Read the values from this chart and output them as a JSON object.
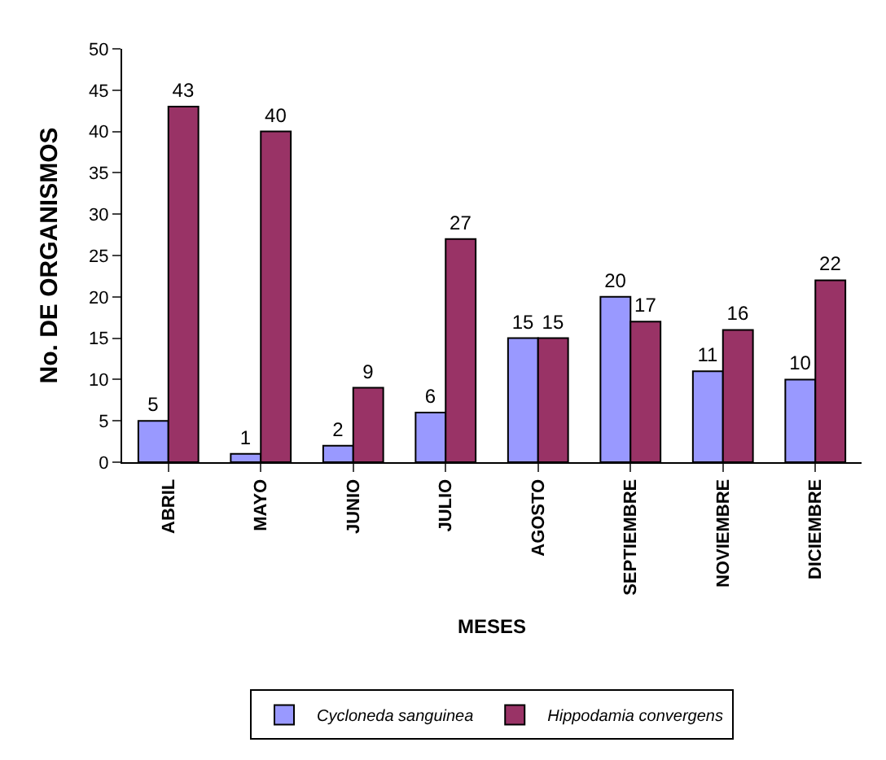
{
  "chart_data": {
    "type": "bar",
    "xlabel": "MESES",
    "ylabel": "No. DE ORGANISMOS",
    "categories": [
      "ABRIL",
      "MAYO",
      "JUNIO",
      "JULIO",
      "AGOSTO",
      "SEPTIEMBRE",
      "NOVIEMBRE",
      "DICIEMBRE"
    ],
    "series": [
      {
        "name": "Cycloneda sanguinea",
        "color": "#9999ff",
        "values": [
          5,
          1,
          2,
          6,
          15,
          20,
          11,
          10
        ]
      },
      {
        "name": "Hippodamia convergens",
        "color": "#993366",
        "values": [
          43,
          40,
          9,
          27,
          15,
          17,
          16,
          22
        ]
      }
    ],
    "ylim": [
      0,
      50
    ],
    "yticks": [
      0,
      5,
      10,
      15,
      20,
      25,
      30,
      35,
      40,
      45,
      50
    ],
    "data_labels": true,
    "grid": false,
    "legend": "bottom"
  }
}
